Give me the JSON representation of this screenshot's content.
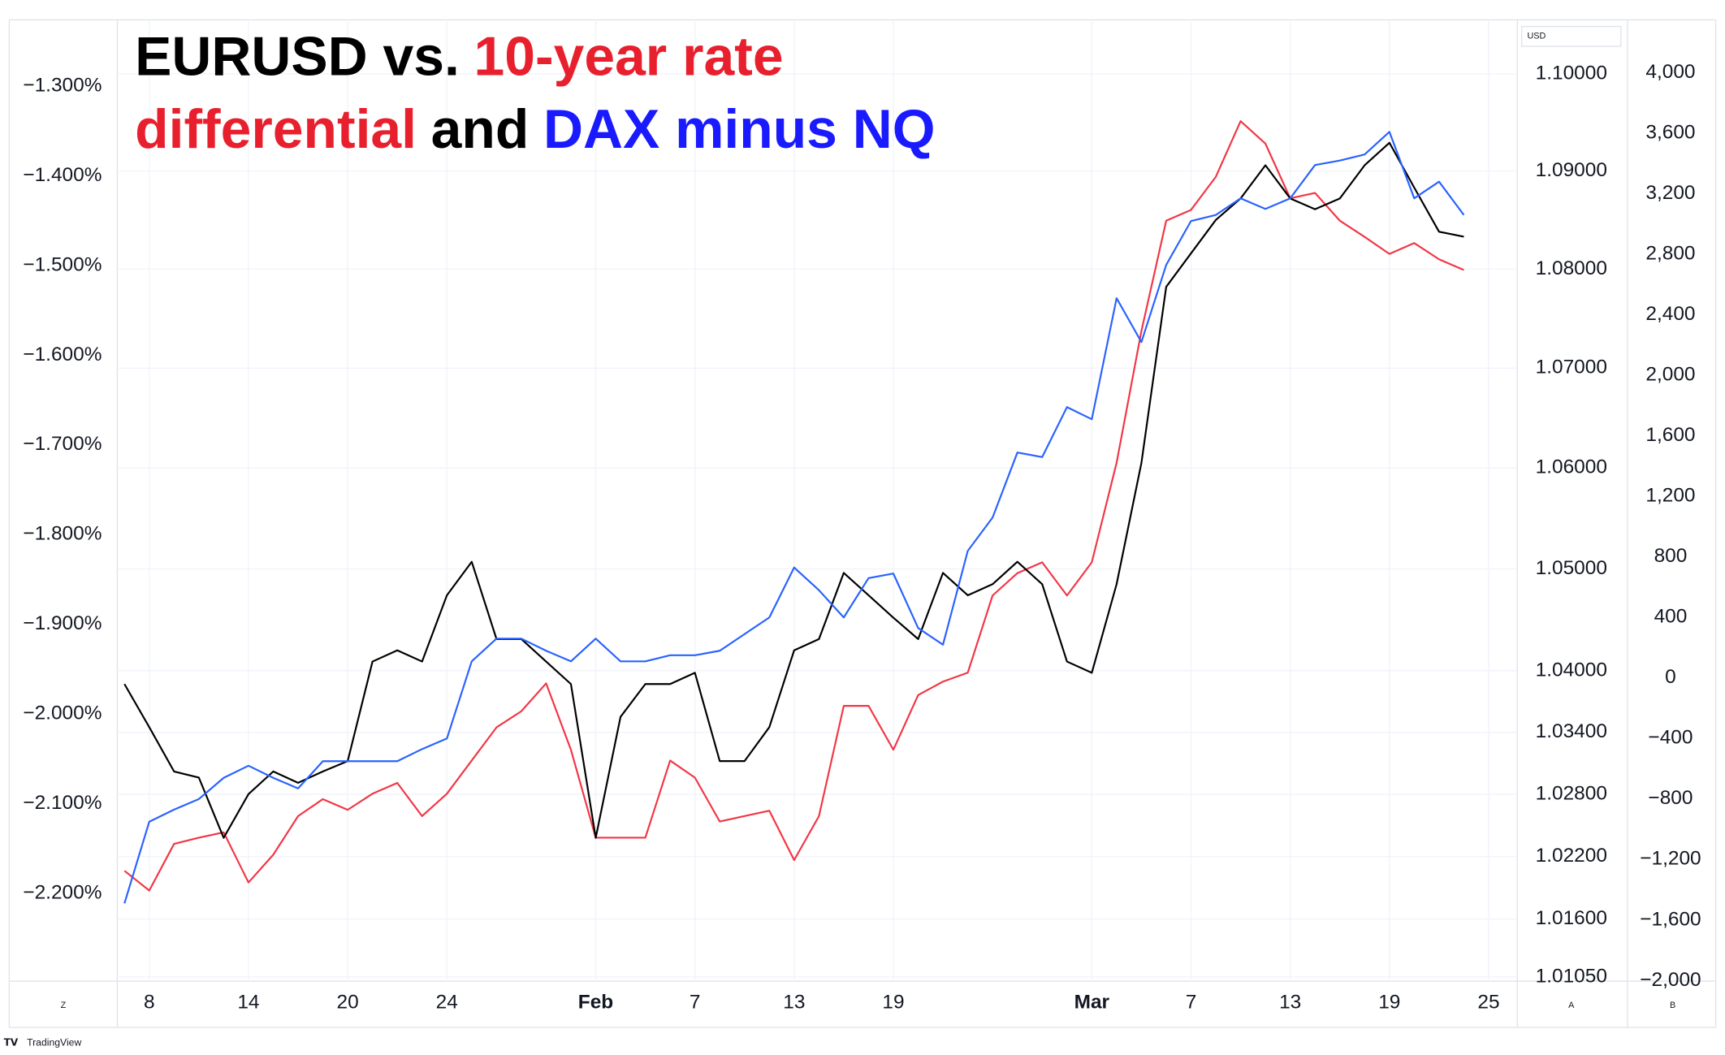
{
  "chart_data": {
    "type": "line",
    "title_lines": [
      [
        {
          "text": "EURUSD vs.",
          "color": "#000000"
        },
        {
          "text": "10-year rate",
          "color": "#e8202e"
        }
      ],
      [
        {
          "text": "differential",
          "color": "#e8202e"
        },
        {
          "text": "and",
          "color": "#000000"
        },
        {
          "text": "DAX minus NQ",
          "color": "#1a1aff"
        }
      ]
    ],
    "categories": [
      null,
      "8",
      null,
      null,
      null,
      "14",
      null,
      null,
      null,
      "20",
      null,
      null,
      null,
      "24",
      null,
      null,
      null,
      null,
      null,
      "Feb",
      null,
      null,
      null,
      "7",
      null,
      null,
      null,
      "13",
      null,
      null,
      null,
      "19",
      null,
      null,
      null,
      null,
      null,
      null,
      null,
      "Mar",
      null,
      null,
      null,
      "7",
      null,
      null,
      null,
      "13",
      null,
      null,
      null,
      "19",
      null,
      null,
      null,
      "25"
    ],
    "series": [
      {
        "color": "#f23645",
        "axis": "y",
        "values": [
          -2.175,
          -2.197,
          -2.145,
          -2.138,
          -2.132,
          -2.188,
          -2.157,
          -2.114,
          -2.095,
          -2.107,
          -2.089,
          -2.077,
          -2.114,
          -2.089,
          -2.052,
          -2.015,
          -1.997,
          -1.966,
          -2.04,
          -2.138,
          -2.138,
          -2.138,
          -2.052,
          -2.071,
          -2.12,
          -2.114,
          -2.108,
          -2.163,
          -2.114,
          -1.991,
          -1.991,
          -2.04,
          -1.979,
          -1.964,
          -1.954,
          -1.868,
          -1.843,
          -1.831,
          -1.868,
          -1.831,
          -1.72,
          -1.573,
          -1.45,
          -1.438,
          -1.401,
          -1.339,
          -1.364,
          -1.425,
          -1.419,
          -1.45,
          -1.468,
          -1.487,
          -1.475,
          -1.493,
          -1.505,
          null
        ]
      },
      {
        "color": "#000000",
        "axis": "y2",
        "values": [
          1.0387,
          1.0345,
          1.0302,
          1.0296,
          1.0238,
          1.028,
          1.0302,
          1.0291,
          1.0302,
          1.0312,
          1.0409,
          1.042,
          1.0409,
          1.0474,
          1.0507,
          1.0431,
          1.0431,
          1.0409,
          1.0387,
          1.0238,
          1.0355,
          1.0387,
          1.0387,
          1.0398,
          1.0312,
          1.0312,
          1.0345,
          1.042,
          1.0431,
          1.0496,
          1.0474,
          1.0452,
          1.0431,
          1.0496,
          1.0474,
          1.0485,
          1.0507,
          1.0485,
          1.0409,
          1.0398,
          1.0485,
          1.0605,
          1.0782,
          1.0816,
          1.085,
          1.0872,
          1.0906,
          1.0872,
          1.0861,
          1.0872,
          1.0906,
          1.0929,
          1.0883,
          1.0838,
          1.0833,
          null
        ]
      },
      {
        "color": "#2962ff",
        "axis": "y3",
        "values": [
          -1490,
          -950,
          -870,
          -800,
          -660,
          -580,
          -660,
          -730,
          -550,
          -550,
          -550,
          -550,
          -470,
          -400,
          110,
          260,
          260,
          180,
          110,
          260,
          110,
          110,
          150,
          150,
          180,
          290,
          400,
          730,
          580,
          400,
          660,
          690,
          330,
          220,
          840,
          1060,
          1490,
          1460,
          1790,
          1710,
          2510,
          2220,
          2730,
          3020,
          3060,
          3170,
          3100,
          3170,
          3390,
          3420,
          3460,
          3610,
          3170,
          3280,
          3060,
          null
        ]
      }
    ],
    "ylim": [
      -2.298,
      -1.226
    ],
    "yticks": [
      {
        "value": -1.3,
        "label": "−1.300%"
      },
      {
        "value": -1.4,
        "label": "−1.400%"
      },
      {
        "value": -1.5,
        "label": "−1.500%"
      },
      {
        "value": -1.6,
        "label": "−1.600%"
      },
      {
        "value": -1.7,
        "label": "−1.700%"
      },
      {
        "value": -1.8,
        "label": "−1.800%"
      },
      {
        "value": -1.9,
        "label": "−1.900%"
      },
      {
        "value": -2.0,
        "label": "−2.000%"
      },
      {
        "value": -2.1,
        "label": "−2.100%"
      },
      {
        "value": -2.2,
        "label": "−2.200%"
      }
    ],
    "y2lim": [
      1.0101,
      1.1056
    ],
    "y2log": true,
    "y2unit": "USD",
    "y2ticks": [
      {
        "value": 1.1,
        "label": "1.10000"
      },
      {
        "value": 1.09,
        "label": "1.09000"
      },
      {
        "value": 1.08,
        "label": "1.08000"
      },
      {
        "value": 1.07,
        "label": "1.07000"
      },
      {
        "value": 1.06,
        "label": "1.06000"
      },
      {
        "value": 1.05,
        "label": "1.05000"
      },
      {
        "value": 1.04,
        "label": "1.04000"
      },
      {
        "value": 1.034,
        "label": "1.03400"
      },
      {
        "value": 1.028,
        "label": "1.02800"
      },
      {
        "value": 1.022,
        "label": "1.02200"
      },
      {
        "value": 1.016,
        "label": "1.01600"
      },
      {
        "value": 1.0105,
        "label": "1.01050"
      }
    ],
    "y3lim": [
      -2004,
      4350
    ],
    "y3ticks": [
      {
        "value": 4000,
        "label": "4,000"
      },
      {
        "value": 3600,
        "label": "3,600"
      },
      {
        "value": 3200,
        "label": "3,200"
      },
      {
        "value": 2800,
        "label": "2,800"
      },
      {
        "value": 2400,
        "label": "2,400"
      },
      {
        "value": 2000,
        "label": "2,000"
      },
      {
        "value": 1600,
        "label": "1,600"
      },
      {
        "value": 1200,
        "label": "1,200"
      },
      800,
      400,
      0,
      {
        "value": -400,
        "label": "−400"
      },
      {
        "value": -800,
        "label": "−800"
      },
      {
        "value": -1200,
        "label": "−1,200"
      },
      {
        "value": -1600,
        "label": "−1,600"
      },
      {
        "value": -2000,
        "label": "−2,000"
      }
    ],
    "grid": true
  },
  "ui": {
    "left_button": "Z",
    "right_buttons": [
      "A",
      "B"
    ],
    "brand": "TradingView"
  }
}
